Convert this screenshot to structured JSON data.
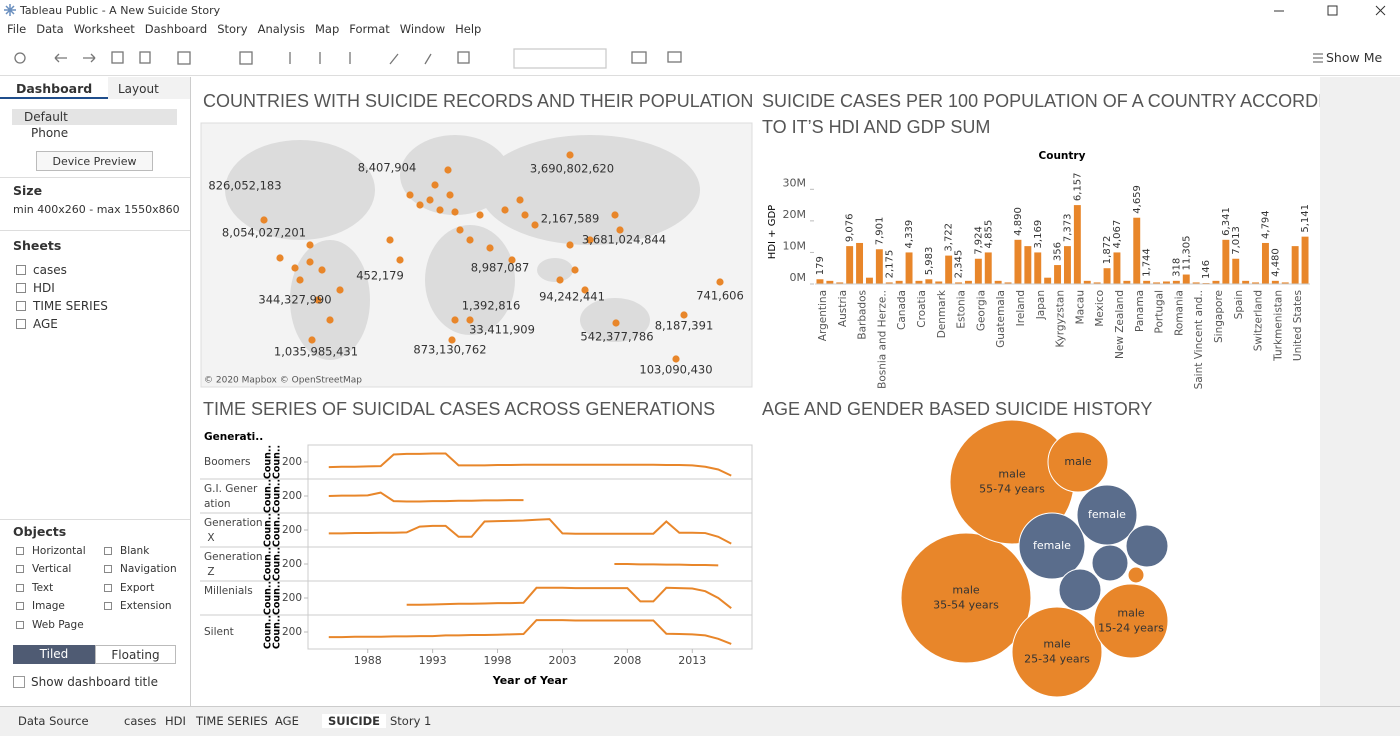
{
  "window": {
    "title": "Tableau Public - A New Suicide Story"
  },
  "menu": [
    "File",
    "Data",
    "Worksheet",
    "Dashboard",
    "Story",
    "Analysis",
    "Map",
    "Format",
    "Window",
    "Help"
  ],
  "toolbar": {
    "show_me": "Show Me"
  },
  "sidebar": {
    "tabs": [
      "Dashboard",
      "Layout"
    ],
    "devices": [
      "Default",
      "Phone"
    ],
    "device_preview": "Device Preview",
    "size_heading": "Size",
    "size_value": "min 400x260 - max 1550x860",
    "sheets_heading": "Sheets",
    "sheets": [
      "cases",
      "HDI",
      "TIME SERIES",
      "AGE"
    ],
    "objects_heading": "Objects",
    "objects": [
      "Horizontal",
      "Blank",
      "Vertical",
      "Navigation",
      "Text",
      "Export",
      "Image",
      "Extension",
      "Web Page"
    ],
    "tiled": "Tiled",
    "floating": "Floating",
    "show_title": "Show dashboard title"
  },
  "sheet_tabs": [
    "Data Source",
    "cases",
    "HDI",
    "TIME SERIES",
    "AGE",
    "SUICIDE",
    "Story 1"
  ],
  "dashboard": {
    "map": {
      "title": "COUNTRIES WITH SUICIDE RECORDS AND THEIR POPULATION",
      "credit": "© 2020 Mapbox © OpenStreetMap",
      "labels": [
        "826,052,183",
        "8,407,904",
        "3,690,802,620",
        "8,054,027,201",
        "2,167,589",
        "3,681,024,844",
        "452,179",
        "8,987,087",
        "344,327,990",
        "1,392,816",
        "94,242,441",
        "741,606",
        "33,411,909",
        "8,187,391",
        "542,377,786",
        "1,035,985,431",
        "873,130,762",
        "103,090,430"
      ],
      "color": "#e8862a"
    },
    "bar_chart": {
      "type": "bar",
      "title": "SUICIDE CASES PER 100 POPULATION OF A COUNTRY ACCORDING TO IT’S HDI AND GDP SUM",
      "subtitle": "Country",
      "y_label": "HDI + GDP",
      "color": "#e8862a",
      "categories": [
        "Argentina",
        null,
        "Austria",
        null,
        "Barbados",
        null,
        "Bosnia and Herze..",
        null,
        "Canada",
        null,
        "Croatia",
        null,
        "Denmark",
        null,
        "Estonia",
        null,
        "Georgia",
        null,
        "Guatemala",
        null,
        "Ireland",
        null,
        "Japan",
        null,
        "Kyrgyzstan",
        null,
        "Macau",
        null,
        "Mexico",
        null,
        "New Zealand",
        null,
        "Panama",
        null,
        "Portugal",
        null,
        "Romania",
        null,
        "Saint Vincent and..",
        null,
        "Singapore",
        null,
        "Spain",
        null,
        "Switzerland",
        null,
        "Turkmenistan",
        null,
        "United States",
        null
      ],
      "values": [
        1500000,
        1000000,
        500000,
        12000000,
        13000000,
        2000000,
        11000000,
        500000,
        1000000,
        10000000,
        1000000,
        1500000,
        800000,
        9000000,
        500000,
        1000000,
        8000000,
        10000000,
        1000000,
        500000,
        14000000,
        12000000,
        10000000,
        2000000,
        6000000,
        12000000,
        25000000,
        1000000,
        500000,
        5000000,
        10000000,
        1000000,
        21000000,
        1000000,
        500000,
        800000,
        1000000,
        3000000,
        500000,
        300000,
        1000000,
        14000000,
        8000000,
        1000000,
        500000,
        13000000,
        1000000,
        500000,
        12000000,
        15000000
      ],
      "bar_labels": [
        "179",
        null,
        null,
        "9,076",
        null,
        null,
        "7,901",
        "2,175",
        null,
        "4,339",
        null,
        "5,983",
        null,
        "3,722",
        "2,345",
        null,
        "7,924",
        "4,855",
        null,
        null,
        "4,890",
        null,
        "3,169",
        null,
        "356",
        "7,373",
        "6,157",
        null,
        null,
        "1,872",
        "4,067",
        null,
        "4,659",
        "1,744",
        null,
        null,
        "318",
        "11,305",
        null,
        "146",
        null,
        "6,341",
        "7,013",
        null,
        null,
        "4,794",
        "4,480",
        null,
        null,
        "5,141"
      ],
      "ylim": [
        0,
        32000000
      ],
      "yticks": [
        {
          "value": 0,
          "label": "0M"
        },
        {
          "value": 10000000,
          "label": "10M"
        },
        {
          "value": 20000000,
          "label": "20M"
        },
        {
          "value": 30000000,
          "label": "30M"
        }
      ]
    },
    "line_chart": {
      "type": "line",
      "title": "TIME SERIES OF SUICIDAL CASES ACROSS GENERATIONS",
      "row_header": "Generati..",
      "x_label": "Year of Year",
      "color": "#e8862a",
      "x": [
        1985,
        1986,
        1987,
        1988,
        1989,
        1990,
        1991,
        1992,
        1993,
        1994,
        1995,
        1996,
        1997,
        1998,
        1999,
        2000,
        2001,
        2002,
        2003,
        2004,
        2005,
        2006,
        2007,
        2008,
        2009,
        2010,
        2011,
        2012,
        2013,
        2014,
        2015,
        2016
      ],
      "xlim": [
        1983.4,
        2017.6
      ],
      "xticks": [
        1988,
        1993,
        1998,
        2003,
        2008,
        2013
      ],
      "ylim": [
        150,
        250
      ],
      "yticks": [
        200
      ],
      "series": [
        {
          "name": "Boomers",
          "axis_label": "Coun..",
          "values": [
            185,
            186,
            186,
            187,
            188,
            222,
            224,
            224,
            225,
            225,
            190,
            190,
            190,
            191,
            191,
            192,
            192,
            192,
            192,
            192,
            192,
            192,
            192,
            192,
            192,
            192,
            191,
            191,
            190,
            186,
            178,
            160
          ]
        },
        {
          "name": "G.I. Generation",
          "axis_label": "Coun..",
          "values": [
            200,
            201,
            201,
            202,
            210,
            185,
            184,
            184,
            185,
            185,
            186,
            186,
            187,
            187,
            188,
            188,
            null,
            null,
            null,
            null,
            null,
            null,
            null,
            null,
            null,
            null,
            null,
            null,
            null,
            null,
            null,
            null
          ]
        },
        {
          "name": "Generation X",
          "axis_label": "Coun..",
          "values": [
            190,
            190,
            191,
            191,
            192,
            192,
            193,
            210,
            212,
            212,
            180,
            180,
            225,
            226,
            227,
            228,
            230,
            232,
            190,
            189,
            189,
            189,
            189,
            189,
            189,
            189,
            225,
            192,
            192,
            191,
            180,
            160
          ]
        },
        {
          "name": "Generation Z",
          "axis_label": "Coun..",
          "values": [
            null,
            null,
            null,
            null,
            null,
            null,
            null,
            null,
            null,
            null,
            null,
            null,
            null,
            null,
            null,
            null,
            null,
            null,
            null,
            null,
            null,
            null,
            200,
            200,
            199,
            199,
            198,
            198,
            197,
            197,
            196,
            null
          ]
        },
        {
          "name": "Millenials",
          "axis_label": "Coun..",
          "values": [
            null,
            null,
            null,
            null,
            null,
            null,
            180,
            180,
            181,
            182,
            183,
            183,
            184,
            185,
            185,
            186,
            230,
            230,
            230,
            229,
            229,
            229,
            229,
            229,
            190,
            190,
            230,
            229,
            228,
            220,
            200,
            170
          ]
        },
        {
          "name": "Silent",
          "axis_label": "Coun..",
          "values": [
            185,
            185,
            186,
            186,
            186,
            187,
            187,
            188,
            188,
            190,
            190,
            191,
            191,
            192,
            193,
            194,
            235,
            235,
            235,
            234,
            234,
            234,
            234,
            234,
            234,
            234,
            195,
            194,
            193,
            190,
            180,
            165
          ]
        }
      ]
    },
    "bubble_chart": {
      "type": "bubble",
      "title": "AGE AND GENDER BASED SUICIDE HISTORY",
      "bubbles": [
        {
          "gender": "male",
          "age": "35-54 years",
          "value": 1943500,
          "color": "#e8862a"
        },
        {
          "gender": "male",
          "age": "55-74 years",
          "value": 1768240,
          "color": "#e8862a"
        },
        {
          "gender": "male",
          "age": "25-34 years",
          "value": 931500,
          "color": "#e8862a"
        },
        {
          "gender": "male",
          "age": "15-24 years",
          "value": 629740,
          "color": "#e8862a"
        },
        {
          "gender": "male",
          "age": null,
          "value": 414000,
          "color": "#e8862a"
        },
        {
          "gender": "female",
          "age": null,
          "value": 414000,
          "color": "#5a6d8c"
        },
        {
          "gender": "female",
          "age": null,
          "value": 500940,
          "color": "#5a6d8c"
        },
        {
          "gender": null,
          "age": null,
          "value": 202860,
          "color": "#5a6d8c"
        },
        {
          "gender": null,
          "age": null,
          "value": 202860,
          "color": "#5a6d8c"
        },
        {
          "gender": null,
          "age": null,
          "value": 149040,
          "color": "#5a6d8c"
        },
        {
          "gender": null,
          "age": null,
          "value": 29440,
          "color": "#e8862a"
        }
      ]
    }
  }
}
